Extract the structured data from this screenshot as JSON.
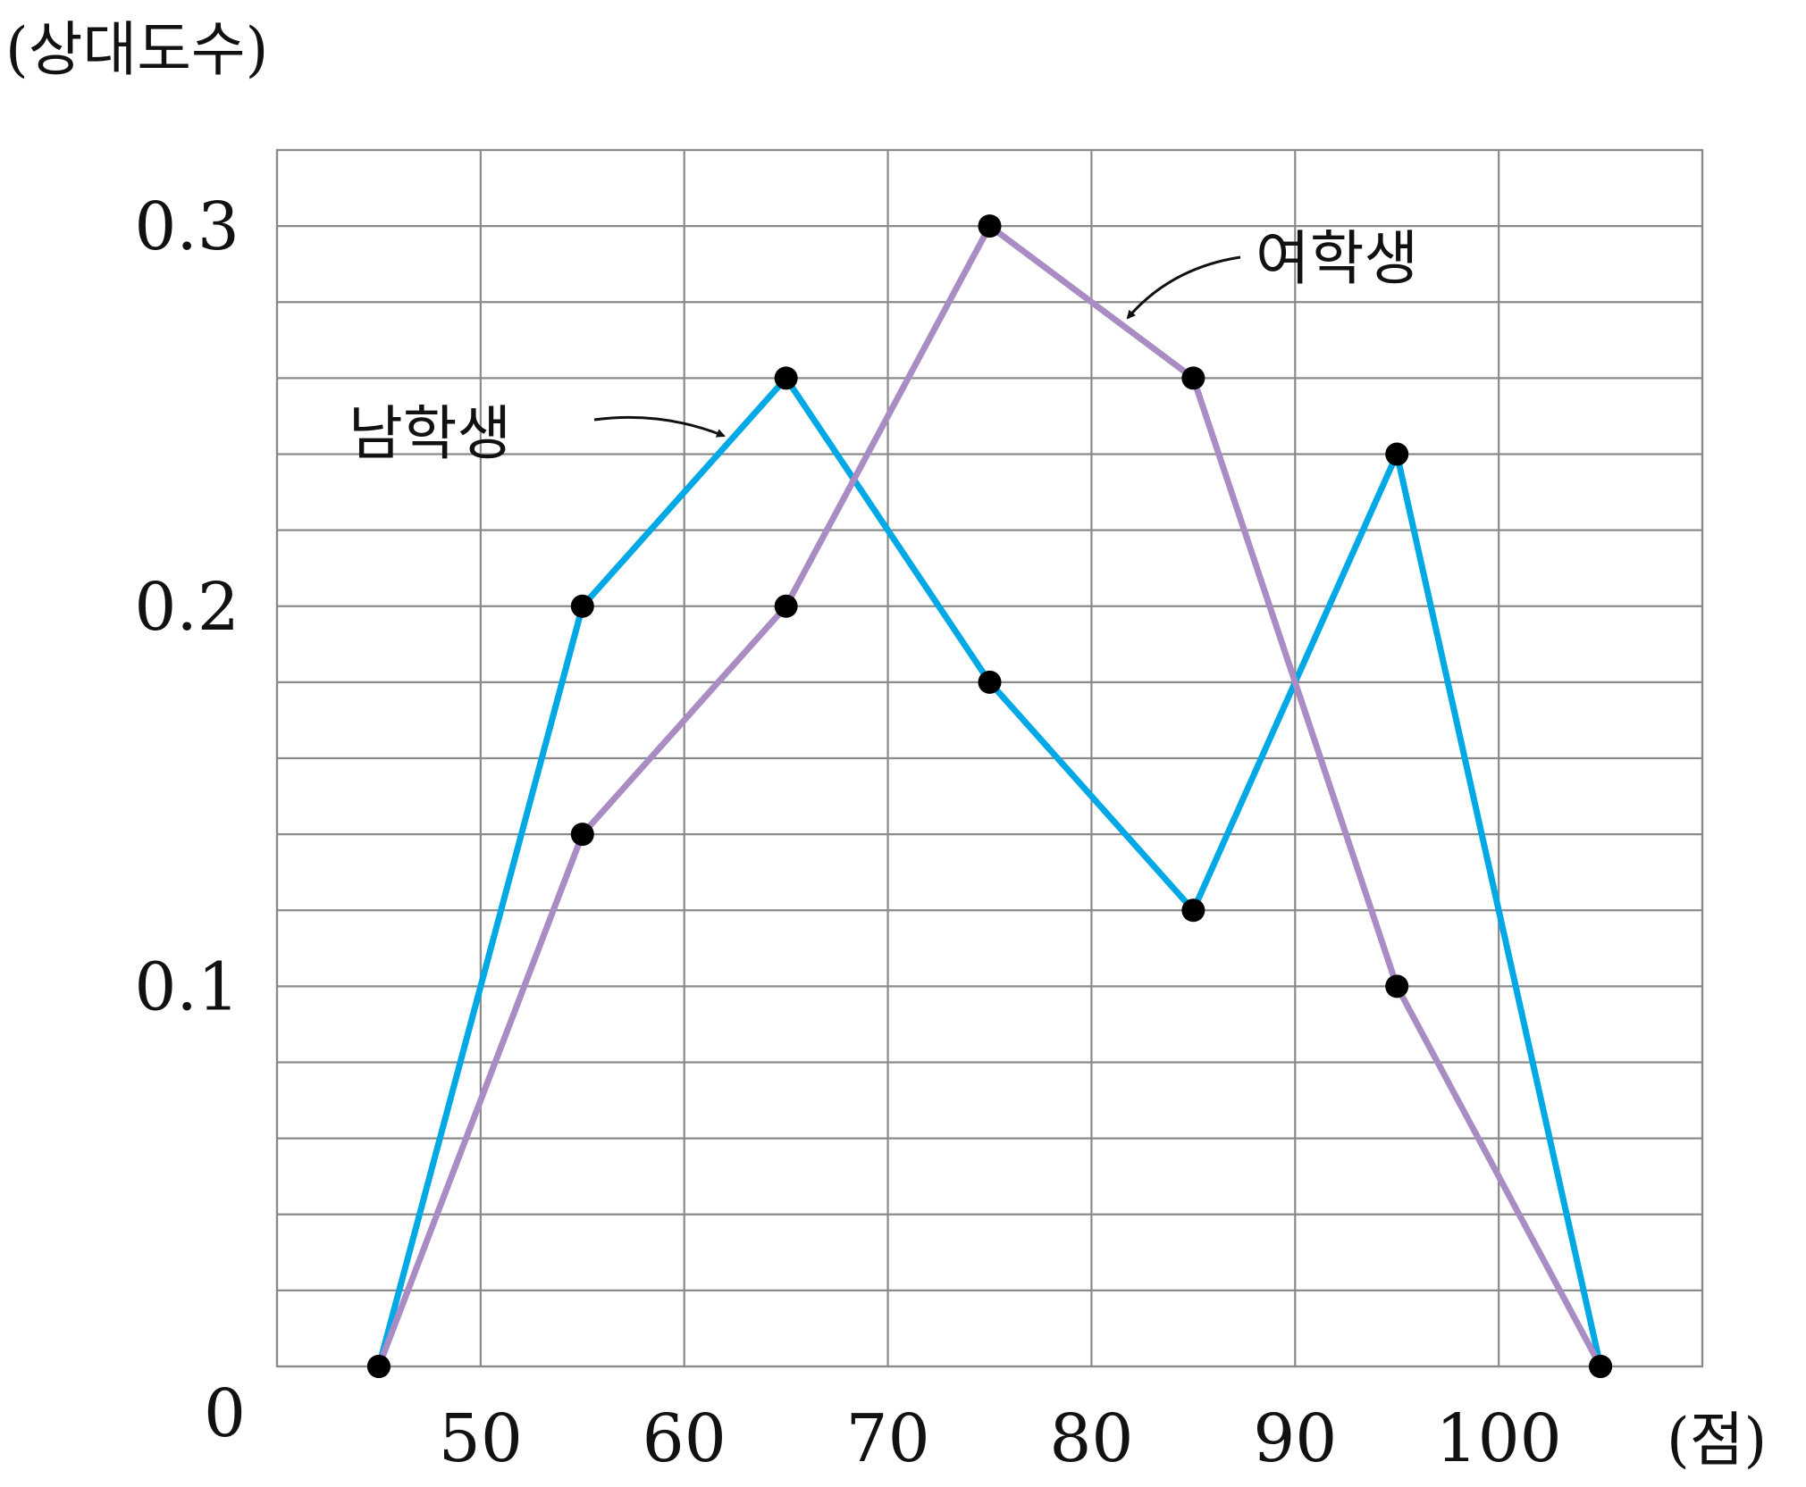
{
  "chart_data": {
    "type": "line",
    "ylabel": "(상대도수)",
    "xlabel": "(점)",
    "origin_label": "0",
    "x_ticks": [
      50,
      60,
      70,
      80,
      90,
      100
    ],
    "y_ticks": [
      0.1,
      0.2,
      0.3
    ],
    "xlim": [
      40,
      110
    ],
    "ylim": [
      0,
      0.32
    ],
    "grid": true,
    "x": [
      45,
      55,
      65,
      75,
      85,
      95,
      105
    ],
    "series": [
      {
        "name": "남학생",
        "color": "#00a9e6",
        "values": [
          0,
          0.2,
          0.26,
          0.18,
          0.12,
          0.24,
          0
        ]
      },
      {
        "name": "여학생",
        "color": "#a98cc4",
        "values": [
          0,
          0.14,
          0.2,
          0.3,
          0.26,
          0.1,
          0
        ]
      }
    ]
  }
}
